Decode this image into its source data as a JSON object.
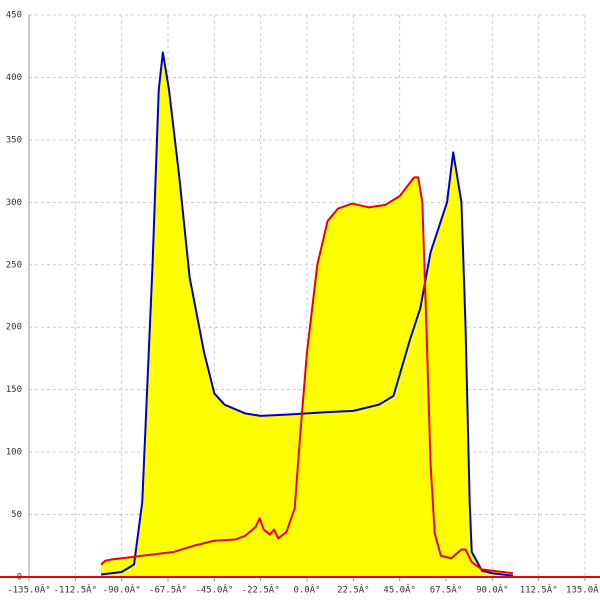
{
  "chart_data": {
    "type": "area",
    "xlim": [
      -135,
      135
    ],
    "xticks": [
      {
        "value": -135,
        "label": "-135.0Â°"
      },
      {
        "value": -112.5,
        "label": "-112.5Â°"
      },
      {
        "value": -90,
        "label": "-90.0Â°"
      },
      {
        "value": -67.5,
        "label": "-67.5Â°"
      },
      {
        "value": -45,
        "label": "-45.0Â°"
      },
      {
        "value": -22.5,
        "label": "-22.5Â°"
      },
      {
        "value": 0,
        "label": "0.0Â°"
      },
      {
        "value": 22.5,
        "label": "22.5Â°"
      },
      {
        "value": 45,
        "label": "45.0Â°"
      },
      {
        "value": 67.5,
        "label": "67.5Â°"
      },
      {
        "value": 90,
        "label": "90.0Â°"
      },
      {
        "value": 112.5,
        "label": "112.5Â°"
      },
      {
        "value": 135,
        "label": "135.0Â°"
      }
    ],
    "ylim": [
      0,
      450
    ],
    "yticks": [
      0,
      50,
      100,
      150,
      200,
      250,
      300,
      350,
      400,
      450
    ],
    "grid": true,
    "fill": "#ffff00",
    "series": [
      {
        "color": "#0000cc",
        "x": [
          -100,
          -90,
          -84,
          -80,
          -75,
          -72,
          -70,
          -67,
          -62,
          -57,
          -50,
          -45,
          -40,
          -30,
          -22.5,
          -10,
          0,
          10,
          22.5,
          35,
          42,
          50,
          55,
          60,
          65,
          68,
          71,
          75,
          77,
          79,
          80,
          85,
          90,
          100
        ],
        "values": [
          2,
          4,
          10,
          60,
          250,
          390,
          420,
          390,
          320,
          240,
          180,
          147,
          138,
          131,
          129,
          130,
          131,
          132,
          133,
          138,
          145,
          190,
          215,
          260,
          285,
          300,
          340,
          300,
          200,
          60,
          20,
          5,
          3,
          1
        ]
      },
      {
        "color": "#ee0000",
        "x": [
          -100,
          -98,
          -95,
          -85,
          -75,
          -65,
          -55,
          -45,
          -35,
          -30,
          -25,
          -23,
          -21,
          -18,
          -16,
          -14,
          -10,
          -6,
          -3,
          0,
          5,
          10,
          15,
          22,
          30,
          38,
          45,
          52,
          54,
          56,
          58,
          60,
          62,
          65,
          70,
          75,
          77,
          80,
          85,
          100
        ],
        "values": [
          10,
          13,
          14,
          16,
          18,
          20,
          25,
          29,
          30,
          33,
          40,
          47,
          38,
          34,
          38,
          31,
          36,
          55,
          120,
          180,
          250,
          285,
          295,
          299,
          296,
          298,
          305,
          320,
          320,
          300,
          200,
          90,
          35,
          17,
          15,
          22,
          22,
          12,
          6,
          3
        ]
      }
    ]
  }
}
